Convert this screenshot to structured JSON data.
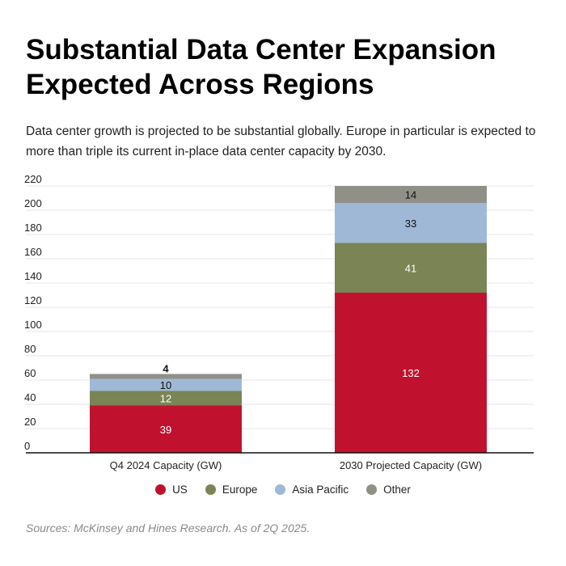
{
  "header": {
    "title": "Substantial Data Center Expansion Expected Across Regions",
    "subtitle": "Data center growth is projected to be substantial globally. Europe in particular is expected to more than triple its current in-place data center capacity by 2030."
  },
  "chart_data": {
    "type": "bar",
    "stacked": true,
    "categories": [
      "Q4 2024 Capacity (GW)",
      "2030 Projected Capacity (GW)"
    ],
    "series": [
      {
        "name": "US",
        "color": "#c0122f",
        "values": [
          39,
          132
        ]
      },
      {
        "name": "Europe",
        "color": "#7a8455",
        "values": [
          12,
          41
        ]
      },
      {
        "name": "Asia Pacific",
        "color": "#9fb8d6",
        "values": [
          10,
          33
        ]
      },
      {
        "name": "Other",
        "color": "#909088",
        "values": [
          4,
          14
        ]
      }
    ],
    "ylim": [
      0,
      220
    ],
    "yticks": [
      0,
      20,
      40,
      60,
      80,
      100,
      120,
      140,
      160,
      180,
      200,
      220
    ],
    "grid": true,
    "legend_position": "bottom"
  },
  "legend": {
    "items": [
      {
        "label": "US",
        "color": "#c0122f"
      },
      {
        "label": "Europe",
        "color": "#7a8455"
      },
      {
        "label": "Asia Pacific",
        "color": "#9fb8d6"
      },
      {
        "label": "Other",
        "color": "#909088"
      }
    ]
  },
  "footer": {
    "source": "Sources: McKinsey and Hines Research. As of 2Q 2025."
  }
}
